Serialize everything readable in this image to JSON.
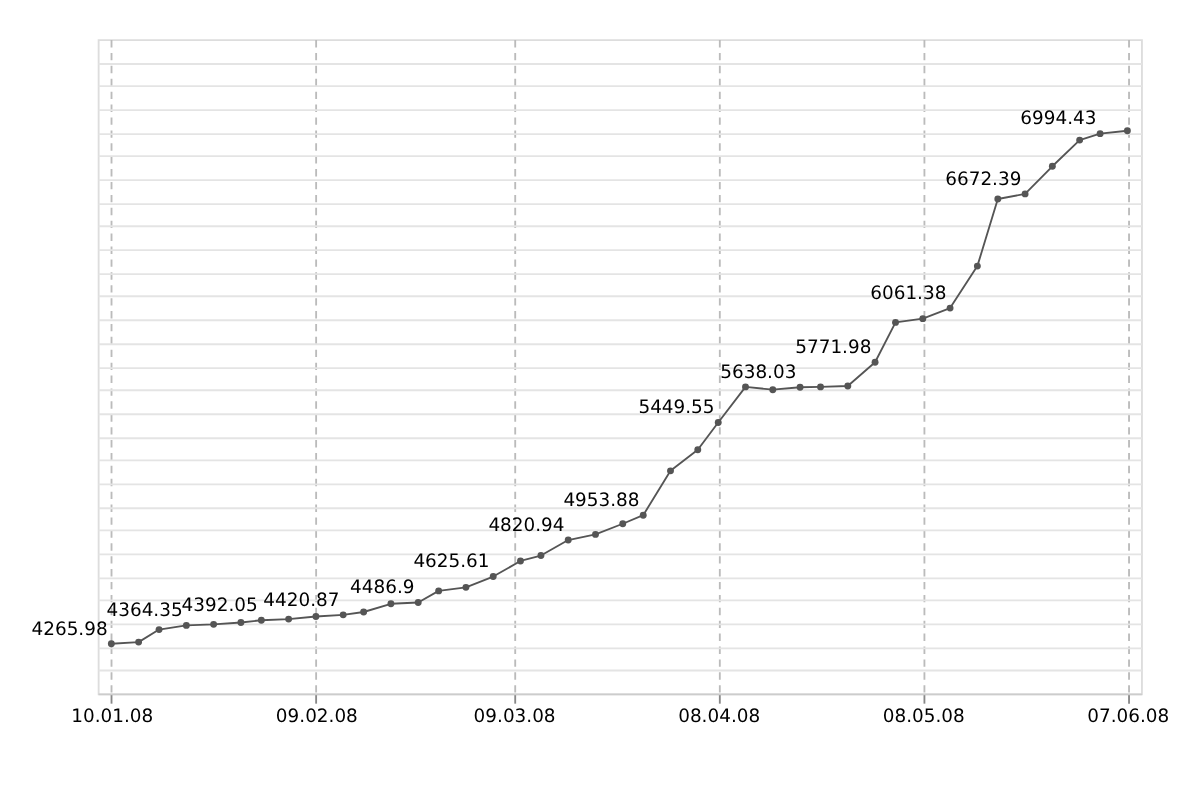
{
  "chart_data": {
    "type": "line",
    "x": [
      "2008-01-10",
      "2008-01-14",
      "2008-01-17",
      "2008-01-21",
      "2008-01-25",
      "2008-01-29",
      "2008-02-01",
      "2008-02-05",
      "2008-02-09",
      "2008-02-13",
      "2008-02-16",
      "2008-02-20",
      "2008-02-24",
      "2008-02-27",
      "2008-03-02",
      "2008-03-06",
      "2008-03-10",
      "2008-03-13",
      "2008-03-17",
      "2008-03-21",
      "2008-03-25",
      "2008-03-28",
      "2008-04-01",
      "2008-04-05",
      "2008-04-08",
      "2008-04-12",
      "2008-04-16",
      "2008-04-20",
      "2008-04-23",
      "2008-04-27",
      "2008-05-01",
      "2008-05-04",
      "2008-05-08",
      "2008-05-12",
      "2008-05-16",
      "2008-05-19",
      "2008-05-23",
      "2008-05-27",
      "2008-05-31",
      "2008-06-03",
      "2008-06-07"
    ],
    "series": [
      {
        "color": "#555555",
        "values": [
          4265.98,
          4275,
          4342,
          4364.35,
          4370,
          4380,
          4392.05,
          4398,
          4412,
          4420.87,
          4436,
          4480,
          4486.9,
          4549,
          4568,
          4625.61,
          4709,
          4738,
          4820.94,
          4851,
          4908,
          4953.88,
          5191,
          5304,
          5449.55,
          5640,
          5625,
          5638.03,
          5640,
          5645,
          5771.98,
          5985,
          6005,
          6061.38,
          6286,
          6645,
          6672.39,
          6820,
          6960,
          6994.43,
          7010
        ],
        "value_labels": [
          "4265.98",
          null,
          null,
          "4364.35",
          null,
          null,
          "4392.05",
          null,
          null,
          "4420.87",
          null,
          null,
          "4486.9",
          null,
          null,
          "4625.61",
          null,
          null,
          "4820.94",
          null,
          null,
          "4953.88",
          null,
          null,
          "5449.55",
          null,
          null,
          "5638.03",
          null,
          null,
          "5771.98",
          null,
          null,
          "6061.38",
          null,
          null,
          "6672.39",
          null,
          null,
          "6994.43",
          null
        ]
      }
    ],
    "xlim": [
      "2008-01-08",
      "2008-06-09"
    ],
    "xticks": [
      {
        "value": "2008-01-10",
        "label": "10.01.08"
      },
      {
        "value": "2008-02-09",
        "label": "09.02.08"
      },
      {
        "value": "2008-03-09",
        "label": "09.03.08"
      },
      {
        "value": "2008-04-08",
        "label": "08.04.08"
      },
      {
        "value": "2008-05-08",
        "label": "08.05.08"
      },
      {
        "value": "2008-06-07",
        "label": "07.06.08"
      }
    ],
    "ylim": [
      4000,
      7500
    ],
    "yticks": [
      {
        "value": 4125,
        "label": null
      },
      {
        "value": 4250,
        "label": null
      },
      {
        "value": 4375,
        "label": null
      },
      {
        "value": 4500,
        "label": null
      },
      {
        "value": 4625,
        "label": null
      },
      {
        "value": 4750,
        "label": null
      },
      {
        "value": 4875,
        "label": null
      },
      {
        "value": 5000,
        "label": null
      },
      {
        "value": 5125,
        "label": null
      },
      {
        "value": 5250,
        "label": null
      },
      {
        "value": 5375,
        "label": null
      },
      {
        "value": 5500,
        "label": null
      },
      {
        "value": 5625,
        "label": null
      },
      {
        "value": 5750,
        "label": null
      },
      {
        "value": 5875,
        "label": null
      },
      {
        "value": 6000,
        "label": null
      },
      {
        "value": 6125,
        "label": null
      },
      {
        "value": 6250,
        "label": null
      },
      {
        "value": 6375,
        "label": null
      },
      {
        "value": 6500,
        "label": null
      },
      {
        "value": 6625,
        "label": null
      },
      {
        "value": 6750,
        "label": null
      },
      {
        "value": 6875,
        "label": null
      },
      {
        "value": 7000,
        "label": null
      },
      {
        "value": 7125,
        "label": null
      },
      {
        "value": 7250,
        "label": null
      },
      {
        "value": 7375,
        "label": null
      }
    ],
    "tick_labels": "x",
    "grid": true,
    "marker": "circle",
    "line_style": "solid"
  }
}
